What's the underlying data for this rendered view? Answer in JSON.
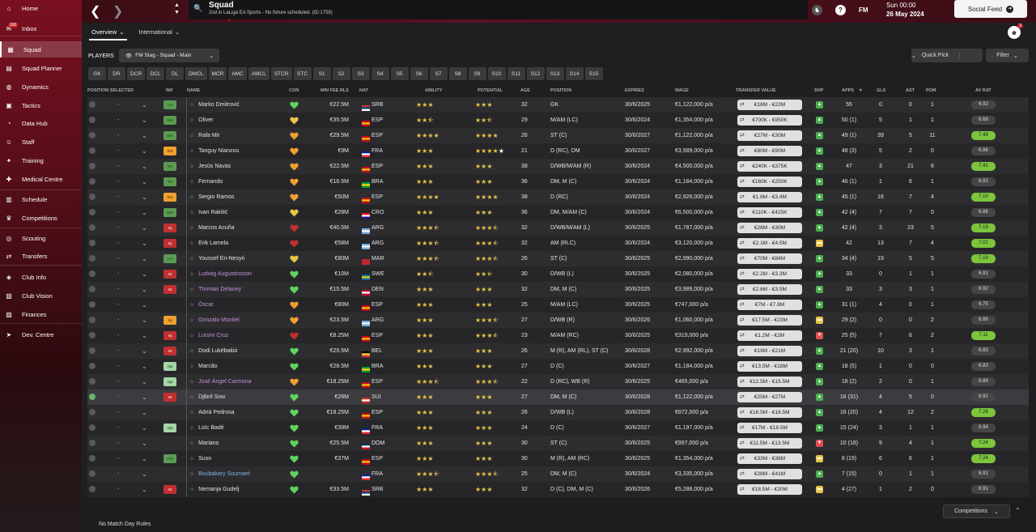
{
  "sidebar": {
    "items": [
      {
        "label": "Home",
        "icon": "home-icon",
        "glyph": "⌂"
      },
      {
        "label": "Inbox",
        "icon": "inbox-icon",
        "glyph": "✉",
        "badge": "160"
      },
      {
        "label": "Squad",
        "icon": "squad-icon",
        "glyph": "▦"
      },
      {
        "label": "Squad Planner",
        "icon": "planner-icon",
        "glyph": "▤"
      },
      {
        "label": "Dynamics",
        "icon": "dynamics-icon",
        "glyph": "◍"
      },
      {
        "label": "Tactics",
        "icon": "tactics-icon",
        "glyph": "▣"
      },
      {
        "label": "Data Hub",
        "icon": "data-hub-icon",
        "glyph": "◔"
      },
      {
        "label": "Staff",
        "icon": "staff-icon",
        "glyph": "☺"
      },
      {
        "label": "Training",
        "icon": "training-icon",
        "glyph": "✦"
      },
      {
        "label": "Medical Centre",
        "icon": "medical-icon",
        "glyph": "✚"
      },
      {
        "label": "Schedule",
        "icon": "schedule-icon",
        "glyph": "▥"
      },
      {
        "label": "Competitions",
        "icon": "trophy-icon",
        "glyph": "♛"
      },
      {
        "label": "Scouting",
        "icon": "scouting-icon",
        "glyph": "◎"
      },
      {
        "label": "Transfers",
        "icon": "transfers-icon",
        "glyph": "⇄"
      },
      {
        "label": "Club Info",
        "icon": "club-info-icon",
        "glyph": "◈"
      },
      {
        "label": "Club Vision",
        "icon": "club-vision-icon",
        "glyph": "▧"
      },
      {
        "label": "Finances",
        "icon": "finances-icon",
        "glyph": "▨"
      },
      {
        "label": "Dev. Centre",
        "icon": "dev-centre-icon",
        "glyph": "➤"
      }
    ]
  },
  "header": {
    "title": "Squad",
    "subtitle": "2nd in LaLiga EA Sports - No fixture scheduled. (ID:1759)",
    "fm": "FM",
    "day_time": "Sun 00:00",
    "date": "26 May 2024",
    "social_feed": "Social Feed",
    "notif_count": "3"
  },
  "subtabs": {
    "overview": "Overview",
    "international": "International"
  },
  "toolbar": {
    "players_label": "PLAYERS",
    "view_select": "FM Stag - Squad - Main",
    "quick_pick": "Quick Pick",
    "filter": "Filter"
  },
  "position_filters": [
    "GK",
    "DR",
    "DCR",
    "DCL",
    "DL",
    "DMCL",
    "MCR",
    "AMC",
    "AMCL",
    "STCR",
    "STC",
    "S1",
    "S2",
    "S3",
    "S4",
    "S5",
    "S6",
    "S7",
    "S8",
    "S9",
    "S10",
    "S11",
    "S12",
    "S13",
    "S14",
    "S15"
  ],
  "columns": {
    "pos_selected": "POSITION SELECTED",
    "inf": "INF",
    "name": "NAME",
    "con": "CON",
    "fee": "MIN FEE RLS",
    "nat": "NAT",
    "ability": "ABILITY",
    "potential": "POTENTIAL",
    "age": "AGE",
    "position": "POSITION",
    "expires": "EXPIRES",
    "wage": "WAGE",
    "tv": "TRANSFER VALUE",
    "shp": "SHP",
    "apps": "APPS",
    "gls": "GLS",
    "ast": "AST",
    "pom": "POM",
    "avrat": "AV RAT"
  },
  "colors": {
    "con_green": "#5fd35f",
    "con_yellow": "#e8c547",
    "con_orange": "#f0a030",
    "con_red": "#c03030",
    "star": "#e8c547",
    "avrat_high": "#7cc53c"
  },
  "players": [
    {
      "pos": "-",
      "inf": "Lrn",
      "infc": "lrn",
      "name": "Marko Dmitrović",
      "con": "green",
      "fee": "€22.5M",
      "nat": "SRB",
      "flag": [
        "#c6363c",
        "#0c4076",
        "#fff"
      ],
      "ab": 3,
      "abh": 0,
      "pot": 3,
      "poth": 0,
      "age": "32",
      "position": "GK",
      "exp": "30/6/2025",
      "wage": "€1,122,000 p/a",
      "tv": "€18M - €22M",
      "shp": "up",
      "apps": "55",
      "gls": "0",
      "ast": "0",
      "pom": "1",
      "av": "6.92",
      "hi": false
    },
    {
      "pos": "-",
      "inf": "Wnt",
      "infc": "wnt",
      "name": "Oliver",
      "con": "yellow",
      "fee": "€35.5M",
      "nat": "ESP",
      "flag": [
        "#c60b1e",
        "#ffc400",
        "#c60b1e"
      ],
      "ab": 2,
      "abh": 1,
      "pot": 2,
      "poth": 1,
      "age": "29",
      "position": "M/AM (LC)",
      "exp": "30/6/2024",
      "wage": "€1,354,000 p/a",
      "tv": "€700K - €950K",
      "shp": "up",
      "apps": "50 (1)",
      "gls": "5",
      "ast": "1",
      "pom": "1",
      "av": "6.68",
      "hi": false
    },
    {
      "pos": "-",
      "inf": "Wnt",
      "infc": "wnt",
      "name": "Rafa Mir",
      "con": "orange",
      "fee": "€29.5M",
      "nat": "ESP",
      "flag": [
        "#c60b1e",
        "#ffc400",
        "#c60b1e"
      ],
      "ab": 4,
      "abh": 0,
      "pot": 4,
      "poth": 0,
      "age": "26",
      "position": "ST (C)",
      "exp": "30/6/2027",
      "wage": "€1,122,000 p/a",
      "tv": "€27M - €30M",
      "shp": "up",
      "apps": "49 (1)",
      "gls": "39",
      "ast": "5",
      "pom": "11",
      "av": "7.49",
      "hi": true
    },
    {
      "pos": "-",
      "inf": "Rst",
      "infc": "rst",
      "name": "Tanguy Nianzou",
      "con": "orange",
      "fee": "€9M",
      "nat": "FRA",
      "flag": [
        "#002395",
        "#fff",
        "#ed2939"
      ],
      "ab": 3,
      "abh": 0,
      "pot": 4,
      "poth": 0,
      "potwhite": true,
      "age": "21",
      "position": "D (RC), DM",
      "exp": "30/6/2027",
      "wage": "€3,989,000 p/a",
      "tv": "€80M - €90M",
      "shp": "up",
      "apps": "48 (3)",
      "gls": "5",
      "ast": "2",
      "pom": "0",
      "av": "6.96",
      "hi": false
    },
    {
      "pos": "-",
      "inf": "Trn",
      "infc": "lrn",
      "name": "Jesús Navas",
      "con": "orange",
      "fee": "€22.5M",
      "nat": "ESP",
      "flag": [
        "#c60b1e",
        "#ffc400",
        "#c60b1e"
      ],
      "ab": 3,
      "abh": 0,
      "pot": 3,
      "poth": 0,
      "age": "38",
      "position": "D/WB/M/AM (R)",
      "exp": "30/6/2024",
      "wage": "€4,500,000 p/a",
      "tv": "€240K - €375K",
      "shp": "up",
      "apps": "47",
      "gls": "3",
      "ast": "21",
      "pom": "6",
      "av": "7.41",
      "hi": true
    },
    {
      "pos": "-",
      "inf": "Trn",
      "infc": "lrn",
      "name": "Fernando",
      "con": "orange",
      "fee": "€16.5M",
      "nat": "BRA",
      "flag": [
        "#009c3b",
        "#ffdf00",
        "#009c3b"
      ],
      "ab": 3,
      "abh": 0,
      "pot": 3,
      "poth": 0,
      "age": "36",
      "position": "DM, M (C)",
      "exp": "30/6/2024",
      "wage": "€1,184,000 p/a",
      "tv": "€160K - €250K",
      "shp": "up",
      "apps": "46 (1)",
      "gls": "1",
      "ast": "6",
      "pom": "1",
      "av": "6.92",
      "hi": false
    },
    {
      "pos": "-",
      "inf": "Rst",
      "infc": "rst",
      "name": "Sergio Ramos",
      "con": "orange",
      "fee": "€50M",
      "nat": "ESP",
      "flag": [
        "#c60b1e",
        "#ffc400",
        "#c60b1e"
      ],
      "ab": 4,
      "abh": 0,
      "pot": 4,
      "poth": 0,
      "age": "38",
      "position": "D (RC)",
      "exp": "30/6/2024",
      "wage": "€2,926,000 p/a",
      "tv": "€1.6M - €3.4M",
      "shp": "up",
      "apps": "45 (1)",
      "gls": "16",
      "ast": "7",
      "pom": "4",
      "av": "7.10",
      "hi": true
    },
    {
      "pos": "-",
      "inf": "Wnt",
      "infc": "wnt",
      "name": "Ivan Rakitić",
      "con": "yellow",
      "fee": "€28M",
      "nat": "CRO",
      "flag": [
        "#ff0000",
        "#fff",
        "#171796"
      ],
      "ab": 3,
      "abh": 0,
      "pot": 3,
      "poth": 0,
      "age": "36",
      "position": "DM, M/AM (C)",
      "exp": "30/6/2024",
      "wage": "€6,500,000 p/a",
      "tv": "€110K - €425K",
      "shp": "up",
      "apps": "42 (4)",
      "gls": "7",
      "ast": "7",
      "pom": "0",
      "av": "6.86",
      "hi": false
    },
    {
      "pos": "-",
      "inf": "Inj",
      "infc": "inj",
      "name": "Marcos Acuña",
      "con": "red",
      "fee": "€40.5M",
      "nat": "ARG",
      "flag": [
        "#74acdf",
        "#fff",
        "#74acdf"
      ],
      "ab": 3,
      "abh": 1,
      "pot": 3,
      "poth": 1,
      "age": "32",
      "position": "D/WB/M/AM (L)",
      "exp": "30/6/2025",
      "wage": "€1,787,000 p/a",
      "tv": "€28M - €30M",
      "shp": "up",
      "apps": "42 (4)",
      "gls": "3",
      "ast": "23",
      "pom": "5",
      "av": "7.19",
      "hi": true
    },
    {
      "pos": "-",
      "inf": "Inj",
      "infc": "inj",
      "name": "Erik Lamela",
      "con": "red",
      "fee": "€58M",
      "nat": "ARG",
      "flag": [
        "#74acdf",
        "#fff",
        "#74acdf"
      ],
      "ab": 3,
      "abh": 1,
      "pot": 3,
      "poth": 1,
      "age": "32",
      "position": "AM (RLC)",
      "exp": "30/6/2024",
      "wage": "€3,120,000 p/a",
      "tv": "€2.1M - €4.5M",
      "shp": "mid",
      "apps": "42",
      "gls": "13",
      "ast": "7",
      "pom": "4",
      "av": "7.02",
      "hi": true
    },
    {
      "pos": "-",
      "inf": "Lrn",
      "infc": "lrn",
      "name": "Youssef En-Nesyri",
      "con": "yellow",
      "fee": "€80M",
      "nat": "MAR",
      "flag": [
        "#c1272d",
        "#c1272d",
        "#c1272d"
      ],
      "ab": 3,
      "abh": 1,
      "pot": 3,
      "poth": 1,
      "age": "26",
      "position": "ST (C)",
      "exp": "30/6/2025",
      "wage": "€2,990,000 p/a",
      "tv": "€70M - €84M",
      "shp": "up",
      "apps": "34 (4)",
      "gls": "19",
      "ast": "5",
      "pom": "5",
      "av": "7.19",
      "hi": true
    },
    {
      "pos": "-",
      "inf": "Int",
      "infc": "inj",
      "name": "Ludwig Augustinsson",
      "namec": "loan",
      "con": "green",
      "fee": "€10M",
      "nat": "SWE",
      "flag": [
        "#006aa7",
        "#fecc00",
        "#006aa7"
      ],
      "ab": 2,
      "abh": 1,
      "pot": 2,
      "poth": 1,
      "age": "30",
      "position": "D/WB (L)",
      "exp": "30/6/2025",
      "wage": "€2,080,000 p/a",
      "tv": "€2.2M - €3.3M",
      "shp": "up",
      "apps": "33",
      "gls": "0",
      "ast": "1",
      "pom": "1",
      "av": "6.91",
      "hi": false
    },
    {
      "pos": "-",
      "inf": "Int",
      "infc": "inj",
      "name": "Thomas Delaney",
      "namec": "loan",
      "con": "green",
      "fee": "€15.5M",
      "nat": "DEN",
      "flag": [
        "#c60c30",
        "#fff",
        "#c60c30"
      ],
      "ab": 3,
      "abh": 0,
      "pot": 3,
      "poth": 0,
      "age": "32",
      "position": "DM, M (C)",
      "exp": "30/6/2025",
      "wage": "€3,989,000 p/a",
      "tv": "€2.6M - €3.5M",
      "shp": "up",
      "apps": "33",
      "gls": "3",
      "ast": "3",
      "pom": "1",
      "av": "6.92",
      "hi": false
    },
    {
      "pos": "-",
      "inf": "",
      "infc": "",
      "name": "Óscar",
      "namec": "loan",
      "con": "orange",
      "fee": "€80M",
      "nat": "ESP",
      "flag": [
        "#c60b1e",
        "#ffc400",
        "#c60b1e"
      ],
      "ab": 3,
      "abh": 0,
      "pot": 3,
      "poth": 0,
      "age": "25",
      "position": "M/AM (LC)",
      "exp": "30/6/2025",
      "wage": "€747,000 p/a",
      "tv": "€7M - €7.8M",
      "shp": "up",
      "apps": "31 (1)",
      "gls": "4",
      "ast": "0",
      "pom": "1",
      "av": "6.75",
      "hi": false
    },
    {
      "pos": "-",
      "inf": "Inj",
      "infc": "rst",
      "name": "Gonzalo Montiel",
      "namec": "loan",
      "con": "orange",
      "fee": "€23.5M",
      "nat": "ARG",
      "flag": [
        "#74acdf",
        "#fff",
        "#74acdf"
      ],
      "ab": 3,
      "abh": 0,
      "pot": 3,
      "poth": 1,
      "age": "27",
      "position": "D/WB (R)",
      "exp": "30/6/2026",
      "wage": "€1,060,000 p/a",
      "tv": "€17.5M - €23M",
      "shp": "mid",
      "apps": "29 (2)",
      "gls": "0",
      "ast": "0",
      "pom": "2",
      "av": "6.86",
      "hi": false
    },
    {
      "pos": "-",
      "inf": "Inj",
      "infc": "inj",
      "name": "Luismi Cruz",
      "namec": "loan",
      "con": "red",
      "fee": "€8.25M",
      "nat": "ESP",
      "flag": [
        "#c60b1e",
        "#ffc400",
        "#c60b1e"
      ],
      "ab": 3,
      "abh": 0,
      "pot": 3,
      "poth": 1,
      "age": "23",
      "position": "M/AM (RC)",
      "exp": "30/6/2025",
      "wage": "€319,000 p/a",
      "tv": "€1.2M - €2M",
      "shp": "down",
      "apps": "25 (5)",
      "gls": "7",
      "ast": "6",
      "pom": "2",
      "av": "7.11",
      "hi": true
    },
    {
      "pos": "-",
      "inf": "Int",
      "infc": "inj",
      "name": "Dodi Lukébakio",
      "con": "green",
      "fee": "€29.5M",
      "nat": "BEL",
      "flag": [
        "#000",
        "#fdda24",
        "#ef3340"
      ],
      "ab": 3,
      "abh": 0,
      "pot": 3,
      "poth": 0,
      "age": "26",
      "position": "M (R), AM (RL), ST (C)",
      "exp": "30/6/2028",
      "wage": "€2,992,000 p/a",
      "tv": "€19M - €21M",
      "shp": "up",
      "apps": "21 (20)",
      "gls": "10",
      "ast": "3",
      "pom": "1",
      "av": "6.83",
      "hi": false
    },
    {
      "pos": "-",
      "inf": "Spt",
      "infc": "spt",
      "name": "Marcão",
      "con": "green",
      "fee": "€28.5M",
      "nat": "BRA",
      "flag": [
        "#009c3b",
        "#ffdf00",
        "#009c3b"
      ],
      "ab": 3,
      "abh": 0,
      "pot": 3,
      "poth": 0,
      "age": "27",
      "position": "D (C)",
      "exp": "30/6/2027",
      "wage": "€1,184,000 p/a",
      "tv": "€13.5M - €18M",
      "shp": "up",
      "apps": "18 (5)",
      "gls": "1",
      "ast": "0",
      "pom": "0",
      "av": "6.83",
      "hi": false
    },
    {
      "pos": "-",
      "inf": "Spt",
      "infc": "spt",
      "name": "José Ángel Carmona",
      "namec": "loan",
      "con": "orange",
      "fee": "€18.25M",
      "nat": "ESP",
      "flag": [
        "#c60b1e",
        "#ffc400",
        "#c60b1e"
      ],
      "ab": 3,
      "abh": 1,
      "pot": 3,
      "poth": 1,
      "age": "22",
      "position": "D (RC), WB (R)",
      "exp": "30/6/2025",
      "wage": "€465,000 p/a",
      "tv": "€12.5M - €15.5M",
      "shp": "up",
      "apps": "18 (2)",
      "gls": "2",
      "ast": "0",
      "pom": "1",
      "av": "6.89",
      "hi": false
    },
    {
      "pos": "-",
      "inf": "Int",
      "infc": "inj",
      "name": "Djibril Sow",
      "con": "green",
      "fee": "€28M",
      "nat": "SUI",
      "flag": [
        "#d52b1e",
        "#fff",
        "#d52b1e"
      ],
      "ab": 3,
      "abh": 0,
      "pot": 3,
      "poth": 0,
      "age": "27",
      "position": "DM, M (C)",
      "exp": "30/6/2028",
      "wage": "€1,122,000 p/a",
      "tv": "€25M - €27M",
      "shp": "up",
      "apps": "16 (31)",
      "gls": "4",
      "ast": "5",
      "pom": "0",
      "av": "6.92",
      "hi": false,
      "selected": true
    },
    {
      "pos": "-",
      "inf": "",
      "infc": "",
      "name": "Adrià Pedrosa",
      "con": "green",
      "fee": "€18.25M",
      "nat": "ESP",
      "flag": [
        "#c60b1e",
        "#ffc400",
        "#c60b1e"
      ],
      "ab": 3,
      "abh": 0,
      "pot": 3,
      "poth": 0,
      "age": "26",
      "position": "D/WB (L)",
      "exp": "30/6/2028",
      "wage": "€872,000 p/a",
      "tv": "€16.5M - €18.5M",
      "shp": "up",
      "apps": "16 (20)",
      "gls": "4",
      "ast": "12",
      "pom": "2",
      "av": "7.26",
      "hi": true
    },
    {
      "pos": "-",
      "inf": "Spt",
      "infc": "spt",
      "name": "Loïc Badé",
      "con": "green",
      "fee": "€39M",
      "nat": "FRA",
      "flag": [
        "#002395",
        "#fff",
        "#ed2939"
      ],
      "ab": 3,
      "abh": 0,
      "pot": 3,
      "poth": 0,
      "age": "24",
      "position": "D (C)",
      "exp": "30/6/2027",
      "wage": "€1,197,000 p/a",
      "tv": "€17M - €18.5M",
      "shp": "up",
      "apps": "15 (24)",
      "gls": "3",
      "ast": "1",
      "pom": "1",
      "av": "6.94",
      "hi": false
    },
    {
      "pos": "-",
      "inf": "",
      "infc": "",
      "name": "Mariano",
      "con": "green",
      "fee": "€25.5M",
      "nat": "DOM",
      "flag": [
        "#002d62",
        "#fff",
        "#ce1126"
      ],
      "ab": 3,
      "abh": 0,
      "pot": 3,
      "poth": 0,
      "age": "30",
      "position": "ST (C)",
      "exp": "30/6/2025",
      "wage": "€997,000 p/a",
      "tv": "€11.5M - €13.5M",
      "shp": "down",
      "apps": "10 (18)",
      "gls": "9",
      "ast": "4",
      "pom": "1",
      "av": "7.24",
      "hi": true
    },
    {
      "pos": "-",
      "inf": "Ask",
      "infc": "ask",
      "name": "Suso",
      "con": "green",
      "fee": "€37M",
      "nat": "ESP",
      "flag": [
        "#c60b1e",
        "#ffc400",
        "#c60b1e"
      ],
      "ab": 3,
      "abh": 0,
      "pot": 3,
      "poth": 0,
      "age": "30",
      "position": "M (R), AM (RC)",
      "exp": "30/6/2025",
      "wage": "€1,354,000 p/a",
      "tv": "€33M - €36M",
      "shp": "mid",
      "apps": "8 (19)",
      "gls": "6",
      "ast": "6",
      "pom": "1",
      "av": "7.24",
      "hi": true
    },
    {
      "pos": "-",
      "inf": "",
      "infc": "",
      "name": "Boubakary Soumaré",
      "namec": "new",
      "con": "green",
      "fee": "",
      "nat": "FRA",
      "flag": [
        "#002395",
        "#fff",
        "#ed2939"
      ],
      "ab": 3,
      "abh": 1,
      "pot": 3,
      "poth": 1,
      "age": "25",
      "position": "DM, M (C)",
      "exp": "30/6/2024",
      "wage": "€3,335,000 p/a",
      "tv": "€28M - €41M",
      "shp": "up",
      "apps": "7 (15)",
      "gls": "0",
      "ast": "1",
      "pom": "1",
      "av": "6.91",
      "hi": false
    },
    {
      "pos": "-",
      "inf": "Int",
      "infc": "inj",
      "name": "Nemanja Gudelj",
      "con": "green",
      "fee": "€33.5M",
      "nat": "SRB",
      "flag": [
        "#c6363c",
        "#0c4076",
        "#fff"
      ],
      "ab": 3,
      "abh": 0,
      "pot": 3,
      "poth": 0,
      "age": "32",
      "position": "D (C), DM, M (C)",
      "exp": "30/6/2026",
      "wage": "€5,288,000 p/a",
      "tv": "€18.5M - €20M",
      "shp": "mid",
      "apps": "4 (27)",
      "gls": "1",
      "ast": "2",
      "pom": "0",
      "av": "6.91",
      "hi": false
    }
  ],
  "footer": {
    "match_day_rules": "No Match Day Rules",
    "competitions": "Competitions"
  }
}
